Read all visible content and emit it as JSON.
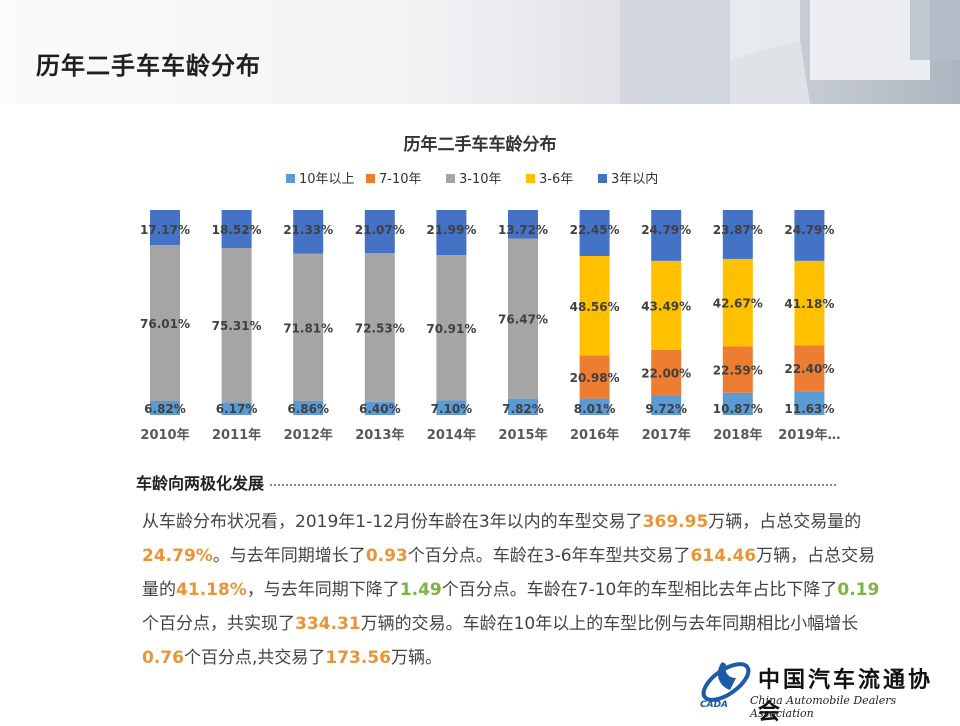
{
  "header": {
    "title": "历年二手车车龄分布"
  },
  "chart_data": {
    "type": "bar",
    "stacked": true,
    "normalized": true,
    "title": "历年二手车车龄分布",
    "xlabel": "",
    "ylabel": "",
    "legend_position": "top",
    "grid": false,
    "categories": [
      "2010年",
      "2011年",
      "2012年",
      "2013年",
      "2014年",
      "2015年",
      "2016年",
      "2017年",
      "2018年",
      "2019年…"
    ],
    "series": [
      {
        "name": "10年以上",
        "color": "#5b9bd5",
        "values": [
          6.82,
          6.17,
          6.86,
          6.4,
          7.1,
          7.82,
          8.01,
          9.72,
          10.87,
          11.63
        ],
        "labels": [
          "6.82%",
          "6.17%",
          "6.86%",
          "6.40%",
          "7.10%",
          "7.82%",
          "8.01%",
          "9.72%",
          "10.87%",
          "11.63%"
        ]
      },
      {
        "name": "7-10年",
        "color": "#ed7d31",
        "values": [
          null,
          null,
          null,
          null,
          null,
          null,
          20.98,
          22.0,
          22.59,
          22.4
        ],
        "labels": [
          "",
          "",
          "",
          "",
          "",
          "",
          "20.98%",
          "22.00%",
          "22.59%",
          "22.40%"
        ]
      },
      {
        "name": "3-10年",
        "color": "#a5a5a5",
        "values": [
          76.01,
          75.31,
          71.81,
          72.53,
          70.91,
          76.47,
          null,
          null,
          null,
          null
        ],
        "labels": [
          "76.01%",
          "75.31%",
          "71.81%",
          "72.53%",
          "70.91%",
          "76.47%",
          "",
          "",
          "",
          ""
        ]
      },
      {
        "name": "3-6年",
        "color": "#ffc000",
        "values": [
          null,
          null,
          null,
          null,
          null,
          null,
          48.56,
          43.49,
          42.67,
          41.18
        ],
        "labels": [
          "",
          "",
          "",
          "",
          "",
          "",
          "48.56%",
          "43.49%",
          "42.67%",
          "41.18%"
        ]
      },
      {
        "name": "3年以内",
        "color": "#4472c4",
        "values": [
          17.17,
          18.52,
          21.33,
          21.07,
          21.99,
          13.72,
          22.45,
          24.79,
          23.87,
          24.79
        ],
        "labels": [
          "17.17%",
          "18.52%",
          "21.33%",
          "21.07%",
          "21.99%",
          "13.72%",
          "22.45%",
          "24.79%",
          "23.87%",
          "24.79%"
        ]
      }
    ]
  },
  "section": {
    "heading": "车龄向两极化发展",
    "p": [
      "从车龄分布状况看，2019年1-12月份车龄在3年以内的车型交易了",
      "369.95",
      "万辆，占总交易量的",
      "24.79%",
      "。与去年同期增长了",
      "0.93",
      "个百分点。车龄在3-6年车型共交易了",
      "614.46",
      "万辆，占总交易量的",
      "41.18%",
      "，与去年同期下降了",
      "1.49",
      "个百分点。车龄在7-10年的车型相比去年占比下降了",
      "0.19",
      "个百分点，共实现了",
      "334.31",
      "万辆的交易。车龄在10年以上的车型比例与去年同期相比小幅增长",
      "0.76",
      "个百分点,共交易了",
      "173.56",
      "万辆。"
    ]
  },
  "logo": {
    "name_cn": "中国汽车流通协会",
    "name_en": "China Automobile Dealers Association",
    "abbr": "CADA"
  }
}
